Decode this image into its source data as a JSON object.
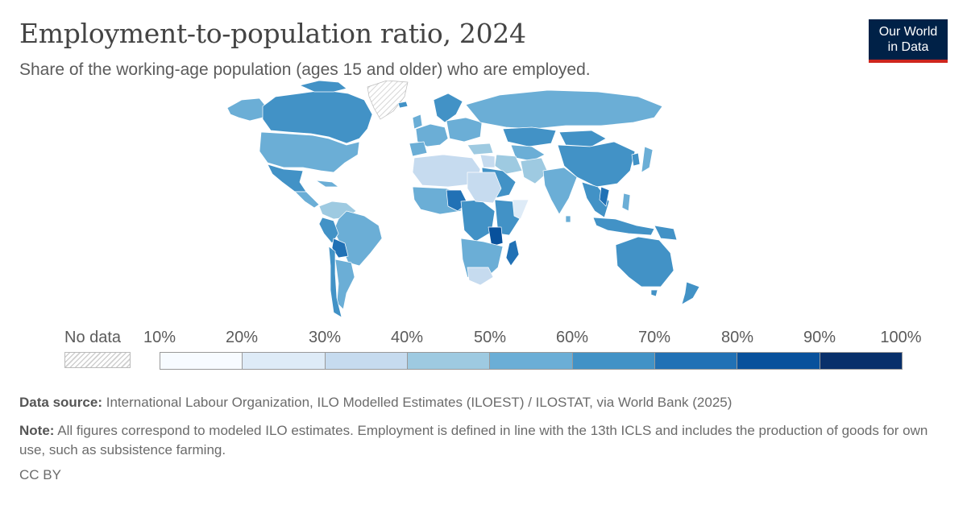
{
  "header": {
    "title": "Employment-to-population ratio, 2024",
    "subtitle": "Share of the working-age population (ages 15 and older) who are employed."
  },
  "logo": {
    "line1": "Our World",
    "line2": "in Data"
  },
  "legend": {
    "no_data_label": "No data",
    "ticks": [
      "10%",
      "20%",
      "30%",
      "40%",
      "50%",
      "60%",
      "70%",
      "80%",
      "90%",
      "100%"
    ],
    "bins": [
      {
        "from": 10,
        "to": 20,
        "color": "#f7fbff"
      },
      {
        "from": 20,
        "to": 30,
        "color": "#deebf7"
      },
      {
        "from": 30,
        "to": 40,
        "color": "#c6dbef"
      },
      {
        "from": 40,
        "to": 50,
        "color": "#9ecae1"
      },
      {
        "from": 50,
        "to": 60,
        "color": "#6baed6"
      },
      {
        "from": 60,
        "to": 70,
        "color": "#4292c6"
      },
      {
        "from": 70,
        "to": 80,
        "color": "#2171b5"
      },
      {
        "from": 80,
        "to": 90,
        "color": "#08519c"
      },
      {
        "from": 90,
        "to": 100,
        "color": "#08306b"
      }
    ]
  },
  "footer": {
    "source_label": "Data source:",
    "source_text": "International Labour Organization, ILO Modelled Estimates (ILOEST) / ILOSTAT, via World Bank (2025)",
    "note_label": "Note:",
    "note_text": "All figures correspond to modeled ILO estimates. Employment is defined in line with the 13th ICLS and includes the production of goods for own use, such as subsistence farming.",
    "license": "CC BY"
  }
}
